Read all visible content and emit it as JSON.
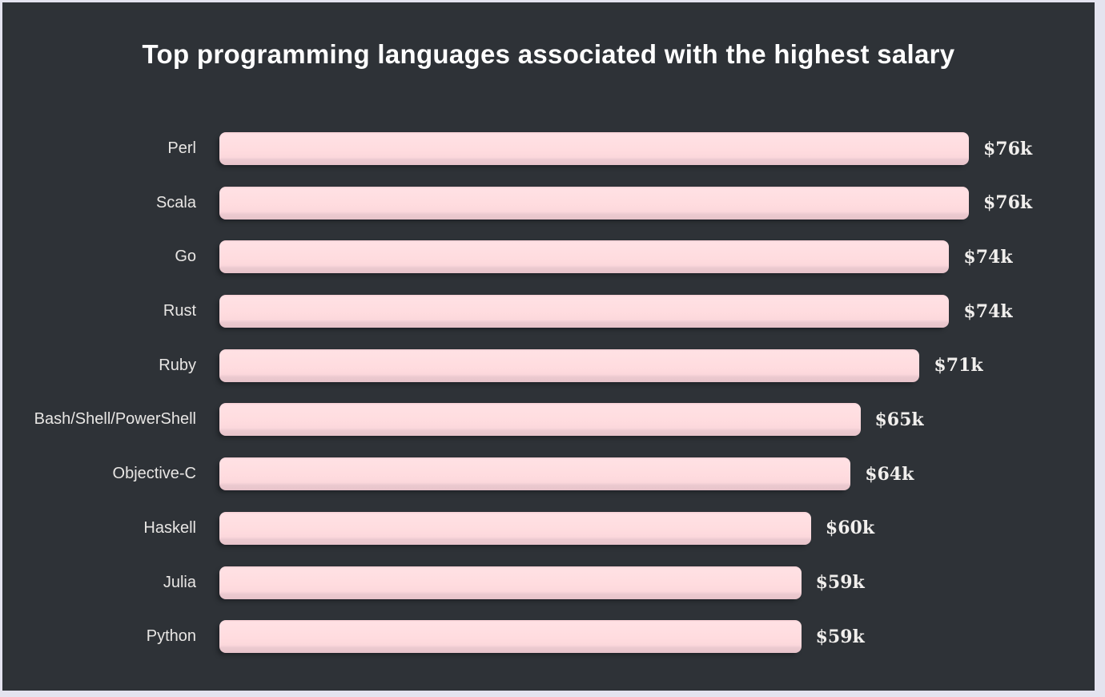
{
  "page": {
    "border_color": "#e4e3ef",
    "panel_color": "#2e3237"
  },
  "chart_data": {
    "type": "bar",
    "orientation": "horizontal",
    "title": "Top programming languages associated with the highest salary",
    "categories": [
      "Perl",
      "Scala",
      "Go",
      "Rust",
      "Ruby",
      "Bash/Shell/PowerShell",
      "Objective-C",
      "Haskell",
      "Julia",
      "Python"
    ],
    "values": [
      76,
      76,
      74,
      74,
      71,
      65,
      64,
      60,
      59,
      59
    ],
    "value_labels": [
      "$76k",
      "$76k",
      "$74k",
      "$74k",
      "$71k",
      "$65k",
      "$64k",
      "$60k",
      "$59k",
      "$59k"
    ],
    "xlim": [
      0,
      76
    ],
    "grid": false,
    "legend": false,
    "colors": {
      "bar_fill": "#ffdcdf",
      "bar_bottom_shade": "#e7c3ca",
      "category_label": "#e8e6e4",
      "value_label": "#f1efed",
      "title": "#ffffff"
    }
  }
}
